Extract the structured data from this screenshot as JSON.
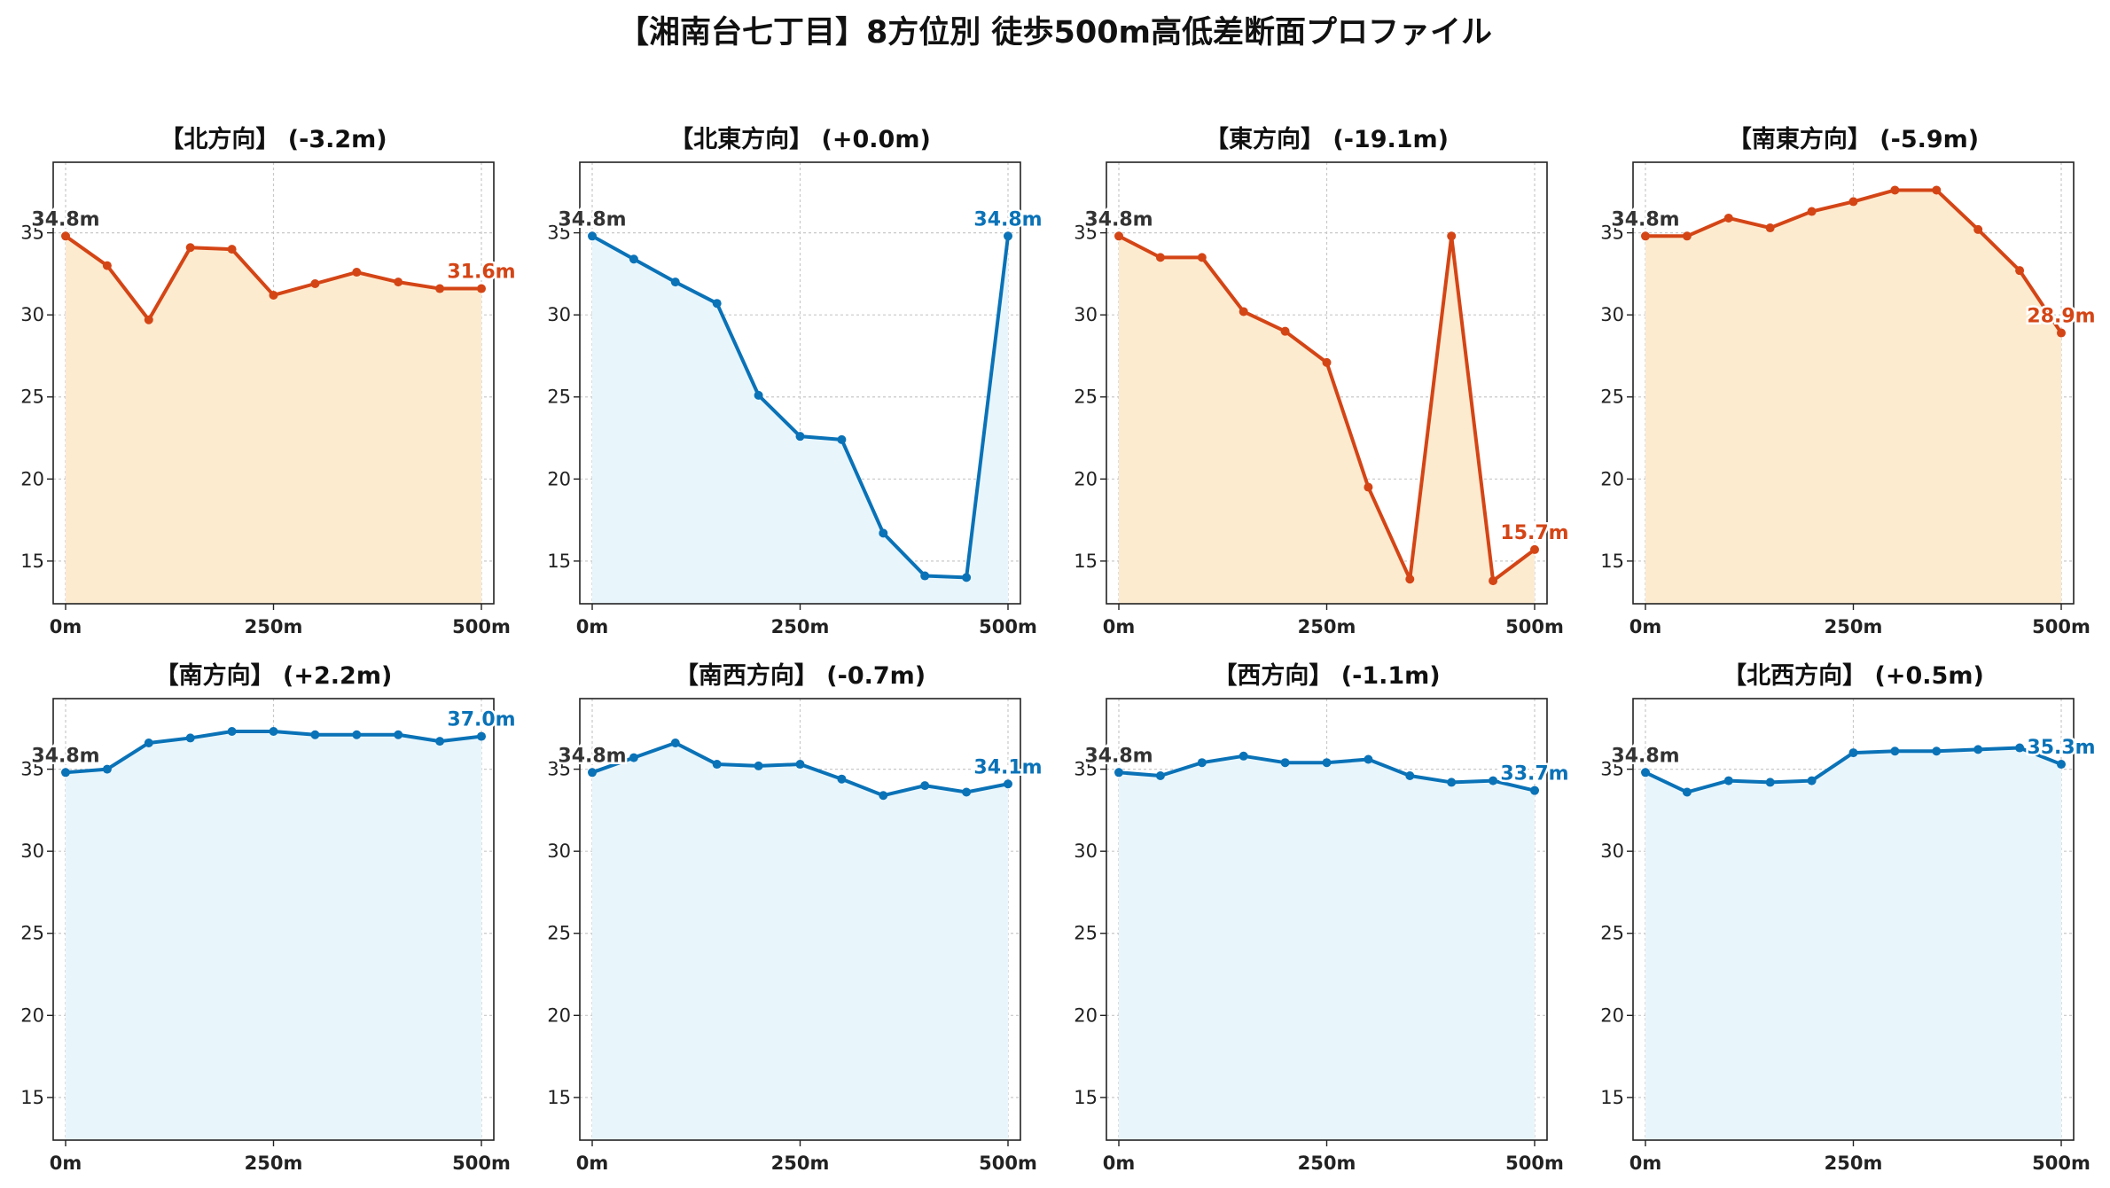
{
  "title": "【湘南台七丁目】8方位別 徒歩500m高低差断面プロファイル",
  "colors": {
    "down": "#d44516",
    "up": "#0a72b7",
    "down_fill": "#fdebd0",
    "up_fill": "#e8f6fc"
  },
  "chart_data": [
    {
      "type": "area",
      "title": "【北方向】 (-3.2m)",
      "trend": "down",
      "x": [
        0,
        50,
        100,
        150,
        200,
        250,
        300,
        350,
        400,
        450,
        500
      ],
      "y": [
        34.8,
        33.0,
        29.7,
        34.1,
        34.0,
        31.2,
        31.9,
        32.6,
        32.0,
        31.6,
        31.6
      ],
      "start_label": "34.8m",
      "end_label": "31.6m",
      "xticks": [
        "0m",
        "250m",
        "500m"
      ],
      "yticks": [
        15,
        20,
        25,
        30,
        35
      ],
      "ylim": [
        12.4,
        39.3
      ],
      "grid": true
    },
    {
      "type": "area",
      "title": "【北東方向】 (+0.0m)",
      "trend": "up",
      "x": [
        0,
        50,
        100,
        150,
        200,
        250,
        300,
        350,
        400,
        450,
        500
      ],
      "y": [
        34.8,
        33.4,
        32.0,
        30.7,
        25.1,
        22.6,
        22.4,
        16.7,
        14.1,
        14.0,
        34.8
      ],
      "start_label": "34.8m",
      "end_label": "34.8m",
      "xticks": [
        "0m",
        "250m",
        "500m"
      ],
      "yticks": [
        15,
        20,
        25,
        30,
        35
      ],
      "ylim": [
        12.4,
        39.3
      ],
      "grid": true
    },
    {
      "type": "area",
      "title": "【東方向】 (-19.1m)",
      "trend": "down",
      "x": [
        0,
        50,
        100,
        150,
        200,
        250,
        300,
        350,
        400,
        450,
        500
      ],
      "y": [
        34.8,
        33.5,
        33.5,
        30.2,
        29.0,
        27.1,
        19.5,
        13.9,
        34.8,
        13.8,
        15.7
      ],
      "start_label": "34.8m",
      "end_label": "15.7m",
      "xticks": [
        "0m",
        "250m",
        "500m"
      ],
      "yticks": [
        15,
        20,
        25,
        30,
        35
      ],
      "ylim": [
        12.4,
        39.3
      ],
      "grid": true
    },
    {
      "type": "area",
      "title": "【南東方向】 (-5.9m)",
      "trend": "down",
      "x": [
        0,
        50,
        100,
        150,
        200,
        250,
        300,
        350,
        400,
        450,
        500
      ],
      "y": [
        34.8,
        34.8,
        35.9,
        35.3,
        36.3,
        36.9,
        37.6,
        37.6,
        35.2,
        32.7,
        28.9
      ],
      "start_label": "34.8m",
      "end_label": "28.9m",
      "xticks": [
        "0m",
        "250m",
        "500m"
      ],
      "yticks": [
        15,
        20,
        25,
        30,
        35
      ],
      "ylim": [
        12.4,
        39.3
      ],
      "grid": true
    },
    {
      "type": "area",
      "title": "【南方向】 (+2.2m)",
      "trend": "up",
      "x": [
        0,
        50,
        100,
        150,
        200,
        250,
        300,
        350,
        400,
        450,
        500
      ],
      "y": [
        34.8,
        35.0,
        36.6,
        36.9,
        37.3,
        37.3,
        37.1,
        37.1,
        37.1,
        36.7,
        37.0
      ],
      "start_label": "34.8m",
      "end_label": "37.0m",
      "xticks": [
        "0m",
        "250m",
        "500m"
      ],
      "yticks": [
        15,
        20,
        25,
        30,
        35
      ],
      "ylim": [
        12.4,
        39.3
      ],
      "grid": true
    },
    {
      "type": "area",
      "title": "【南西方向】 (-0.7m)",
      "trend": "up",
      "x": [
        0,
        50,
        100,
        150,
        200,
        250,
        300,
        350,
        400,
        450,
        500
      ],
      "y": [
        34.8,
        35.7,
        36.6,
        35.3,
        35.2,
        35.3,
        34.4,
        33.4,
        34.0,
        33.6,
        34.1
      ],
      "start_label": "34.8m",
      "end_label": "34.1m",
      "xticks": [
        "0m",
        "250m",
        "500m"
      ],
      "yticks": [
        15,
        20,
        25,
        30,
        35
      ],
      "ylim": [
        12.4,
        39.3
      ],
      "grid": true
    },
    {
      "type": "area",
      "title": "【西方向】 (-1.1m)",
      "trend": "up",
      "x": [
        0,
        50,
        100,
        150,
        200,
        250,
        300,
        350,
        400,
        450,
        500
      ],
      "y": [
        34.8,
        34.6,
        35.4,
        35.8,
        35.4,
        35.4,
        35.6,
        34.6,
        34.2,
        34.3,
        33.7
      ],
      "start_label": "34.8m",
      "end_label": "33.7m",
      "xticks": [
        "0m",
        "250m",
        "500m"
      ],
      "yticks": [
        15,
        20,
        25,
        30,
        35
      ],
      "ylim": [
        12.4,
        39.3
      ],
      "grid": true
    },
    {
      "type": "area",
      "title": "【北西方向】 (+0.5m)",
      "trend": "up",
      "x": [
        0,
        50,
        100,
        150,
        200,
        250,
        300,
        350,
        400,
        450,
        500
      ],
      "y": [
        34.8,
        33.6,
        34.3,
        34.2,
        34.3,
        36.0,
        36.1,
        36.1,
        36.2,
        36.3,
        35.3
      ],
      "start_label": "34.8m",
      "end_label": "35.3m",
      "xticks": [
        "0m",
        "250m",
        "500m"
      ],
      "yticks": [
        15,
        20,
        25,
        30,
        35
      ],
      "ylim": [
        12.4,
        39.3
      ],
      "grid": true
    }
  ]
}
